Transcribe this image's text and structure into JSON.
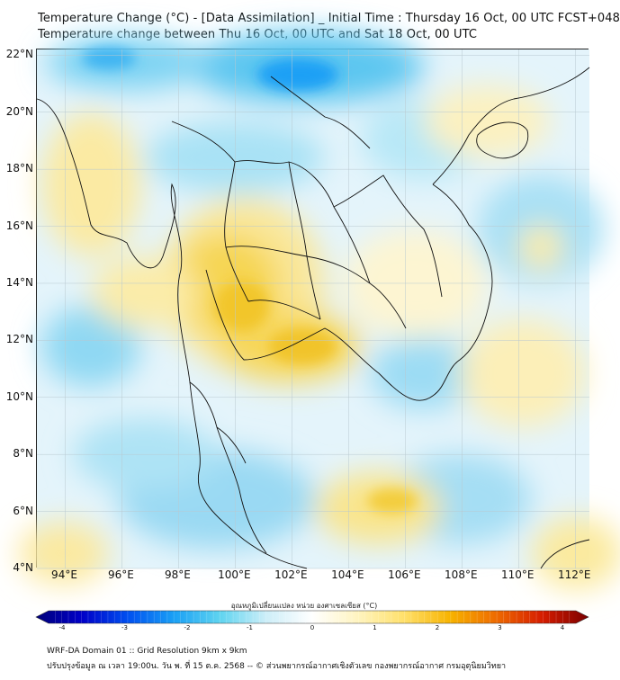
{
  "title": {
    "line1": "Temperature Change (°C) - [Data Assimilation] _ Initial Time : Thursday 16 Oct, 00 UTC FCST+048",
    "line2": "Temperature change between Thu 16 Oct, 00 UTC and Sat 18 Oct, 00 UTC"
  },
  "map": {
    "lon_range": [
      93,
      112.5
    ],
    "lat_range": [
      4,
      22.2
    ],
    "lat_ticks": [
      "22°N",
      "20°N",
      "18°N",
      "16°N",
      "14°N",
      "12°N",
      "10°N",
      "8°N",
      "6°N",
      "4°N"
    ],
    "lat_values": [
      22,
      20,
      18,
      16,
      14,
      12,
      10,
      8,
      6,
      4
    ],
    "lon_ticks": [
      "94°E",
      "96°E",
      "98°E",
      "100°E",
      "102°E",
      "104°E",
      "106°E",
      "108°E",
      "110°E",
      "112°E"
    ],
    "lon_values": [
      94,
      96,
      98,
      100,
      102,
      104,
      106,
      108,
      110,
      112
    ],
    "background_color": "#e4f4fb",
    "grid_color": "#b9c9d0"
  },
  "colorbar": {
    "title": "อุณหภูมิเปลี่ยนแปลง หน่วย องศาเซลเซียส (°C)",
    "range": [
      -4,
      4
    ],
    "ticks": [
      "-4",
      "-3",
      "-2",
      "-1",
      "0",
      "1",
      "2",
      "3",
      "4"
    ],
    "tick_values": [
      -4,
      -3,
      -2,
      -1,
      0,
      1,
      2,
      3,
      4
    ],
    "colors": [
      "#00007a",
      "#0000c8",
      "#0050f0",
      "#1aa0f5",
      "#5fd4f0",
      "#cdeef8",
      "#ffffff",
      "#fff4bf",
      "#ffe06a",
      "#f7b300",
      "#ee6a00",
      "#d51c00",
      "#7a0000"
    ]
  },
  "footer": {
    "line1": "WRF-DA Domain 01 :: Grid Resolution 9km x 9km",
    "line2": "ปรับปรุงข้อมูล ณ เวลา 19:00น. วัน พ. ที่ 15 ต.ค. 2568 -- © ส่วนพยากรณ์อากาศเชิงตัวเลข กองพยากรณ์อากาศ กรมอุตุนิยมวิทยา"
  }
}
